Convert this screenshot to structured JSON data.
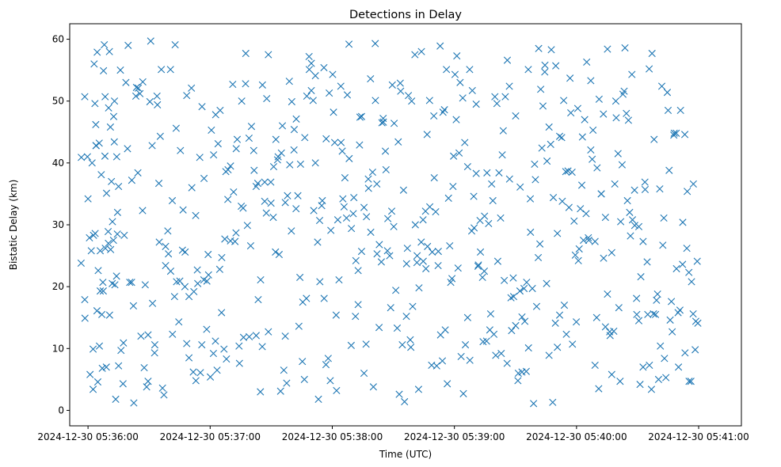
{
  "chart_data": {
    "type": "scatter",
    "title": "Detections in Delay",
    "xlabel": "Time (UTC)",
    "ylabel": "Bistatic Delay (km)",
    "marker": "x",
    "color": "#1f77b4",
    "x_unit": "seconds after 2024-12-30 05:36:00 UTC",
    "xlim": [
      -9,
      321
    ],
    "ylim": [
      -2.5,
      62.5
    ],
    "x_ticks": [
      0,
      60,
      120,
      180,
      240,
      300
    ],
    "x_tick_labels": [
      "2024-12-30 05:36:00",
      "2024-12-30 05:37:00",
      "2024-12-30 05:38:00",
      "2024-12-30 05:39:00",
      "2024-12-30 05:40:00",
      "2024-12-30 05:41:00"
    ],
    "y_ticks": [
      0,
      10,
      20,
      30,
      40,
      50,
      60
    ],
    "y_tick_labels": [
      "0",
      "10",
      "20",
      "30",
      "40",
      "50",
      "60"
    ],
    "grid": false,
    "legend": "none",
    "points_x": [
      -3.4,
      -1.6,
      -1.6,
      0.0,
      1.0,
      2.5,
      3.8,
      3.9,
      4.4,
      5.5,
      6.0,
      7.3,
      8.3,
      9.1,
      10.1,
      11.1,
      12.6,
      13.2,
      14.1,
      14.4,
      15.9,
      17.4,
      18.6,
      19.7,
      21.4,
      22.3,
      23.8,
      24.7,
      26.0,
      26.8,
      28.1,
      29.5,
      30.4,
      31.5,
      32.7,
      33.9,
      34.8,
      35.5,
      36.6,
      38.1,
      39.5,
      40.6,
      41.5,
      42.8,
      43.3,
      45.1,
      46.4,
      47.7,
      48.5,
      49.6,
      50.8,
      52.0,
      52.9,
      53.9,
      54.9,
      55.9,
      57.0,
      58.3,
      59.0,
      60.1,
      61.7,
      62.6,
      63.9,
      64.9,
      65.6,
      67.2,
      68.0,
      68.8,
      70.0,
      71.5,
      72.7,
      73.3,
      74.4,
      75.5,
      76.4,
      77.5,
      79.1,
      79.9,
      81.4,
      82.6,
      83.4,
      84.8,
      85.6,
      86.8,
      87.8,
      88.6,
      89.8,
      91.2,
      92.3,
      93.4,
      94.6,
      95.5,
      96.9,
      97.6,
      98.9,
      99.9,
      101.2,
      102.3,
      103.1,
      104.1,
      105.3,
      106.3,
      107.3,
      108.7,
      109.7,
      110.9,
      111.7,
      113.2,
      113.9,
      115.1,
      116.0,
      117.0,
      118.5,
      119.3,
      120.6,
      121.9,
      122.7,
      124.2,
      124.9,
      125.8,
      127.0,
      128.2,
      129.3,
      130.3,
      131.4,
      132.7,
      133.4,
      134.4,
      135.6,
      136.8,
      137.7,
      138.8,
      140.2,
      141.2,
      142.0,
      143.1,
      144.4,
      145.0,
      146.4,
      147.3,
      148.7,
      149.5,
      150.4,
      151.9,
      152.9,
      153.6,
      155.0,
      156.4,
      156.9,
      158.3,
      159.0,
      160.6,
      161.7,
      162.4,
      163.8,
      164.6,
      166.0,
      166.6,
      167.9,
      169.1,
      170.1,
      171.3,
      172.1,
      173.2,
      174.4,
      175.5,
      176.5,
      177.7,
      178.8,
      179.6,
      180.9,
      181.8,
      182.8,
      184.1,
      185.1,
      186.5,
      187.6,
      188.8,
      189.7,
      190.7,
      191.8,
      192.8,
      194.1,
      194.7,
      196.0,
      197.4,
      198.3,
      199.4,
      200.3,
      201.3,
      202.7,
      203.5,
      204.5,
      205.9,
      207.0,
      207.8,
      208.9,
      210.1,
      211.4,
      212.3,
      213.2,
      214.6,
      215.5,
      216.4,
      217.4,
      218.9,
      219.8,
      221.2,
      222.0,
      223.0,
      224.4,
      225.3,
      226.5,
      227.3,
      228.3,
      229.8,
      230.6,
      231.7,
      233.0,
      234.0,
      235.0,
      236.3,
      237.2,
      238.0,
      239.4,
      240.6,
      241.3,
      242.6,
      243.4,
      244.7,
      245.8,
      247.0,
      247.7,
      249.1,
      249.9,
      250.9,
      252.1,
      253.3,
      254.2,
      255.2,
      256.5,
      257.3,
      258.8,
      259.5,
      260.8,
      261.7,
      262.8,
      263.8,
      265.0,
      266.1,
      267.2,
      268.5,
      269.5,
      270.6,
      271.2,
      272.7,
      273.6,
      275.0,
      275.8,
      277.1,
      278.1,
      279.3,
      280.3,
      281.2,
      282.4,
      283.2,
      284.6,
      285.5,
      286.6,
      287.8,
      289.0,
      289.9,
      290.8,
      292.2,
      293.3,
      294.4,
      295.3,
      296.5,
      297.4,
      298.6,
      299.6,
      -3.3,
      -1.5,
      -0.3,
      0.7,
      1.6,
      2.7,
      3.4,
      4.8,
      5.6,
      6.8,
      7.6,
      8.4,
      9.9,
      10.6,
      11.9,
      12.9,
      13.6,
      15.0,
      16.2,
      17.2,
      17.8,
      19.4,
      20.5,
      21.5,
      22.5,
      23.5,
      24.5,
      25.5,
      26.9,
      27.6,
      28.8,
      29.5,
      30.8,
      31.7,
      32.8,
      34.1,
      35.0,
      36.0,
      37.3,
      38.1,
      39.2,
      40.5,
      41.4,
      42.5,
      43.5,
      44.6,
      45.4,
      46.7,
      47.6,
      48.5,
      49.6,
      51.0,
      51.7,
      53.0,
      53.7,
      55.2,
      56.0,
      56.9,
      58.4,
      59.2,
      60.6,
      61.6,
      62.7,
      63.4,
      64.7,
      65.7,
      66.8,
      67.7,
      68.7,
      70.0,
      71.1,
      72.2,
      72.8,
      74.2,
      75.3,
      76.2,
      77.4,
      78.3,
      79.2,
      80.3,
      81.6,
      82.6,
      83.6,
      84.7,
      85.7,
      86.8,
      87.6,
      88.6,
      89.9,
      91.0,
      92.1,
      93.1,
      93.9,
      95.0,
      96.2,
      96.9,
      98.0,
      99.1,
      100.1,
      101.3,
      102.2,
      103.6,
      104.4,
      105.5,
      106.5,
      107.5,
      108.6,
      109.7,
      110.6,
      111.7,
      112.8,
      113.8,
      114.8,
      115.9,
      116.9,
      118.0,
      119.0,
      120.2,
      121.2,
      122.1,
      123.3,
      124.3,
      125.2,
      126.2,
      127.4,
      128.3,
      129.4,
      130.6,
      131.6,
      132.7,
      133.6,
      134.4,
      135.6,
      136.6,
      137.8,
      138.9,
      139.8,
      141.1,
      141.9,
      143.0,
      144.1,
      145.1,
      146.1,
      147.1,
      148.2,
      149.2,
      150.2,
      151.2,
      152.4,
      153.4,
      154.4,
      155.5,
      156.5,
      157.4,
      158.6,
      159.5,
      160.8,
      161.6,
      162.6,
      163.7,
      164.7,
      165.8,
      166.8,
      167.8,
      168.8,
      169.9,
      170.8,
      172.0,
      173.0,
      174.1,
      175.1,
      176.1,
      177.1,
      178.2,
      179.3,
      180.3,
      181.2,
      182.3,
      183.3,
      184.4,
      185.4,
      186.5,
      187.5,
      188.5,
      189.5,
      190.7,
      191.6,
      192.6,
      193.8,
      194.8,
      195.8,
      196.8,
      197.8,
      198.9,
      199.9,
      200.9,
      201.9,
      203.0,
      204.0,
      205.0,
      206.0,
      207.1,
      208.1,
      209.1,
      210.1,
      211.2,
      212.2,
      213.2,
      214.2,
      215.3,
      216.3,
      217.3,
      218.3,
      219.4,
      220.4,
      221.4,
      222.4,
      223.5,
      224.5,
      225.5,
      226.5,
      227.6,
      228.6,
      229.6,
      230.6,
      231.7,
      232.7,
      233.7,
      234.7,
      235.8,
      236.8,
      237.8,
      238.8,
      239.9,
      240.9,
      241.9,
      242.9,
      244.0,
      245.0,
      246.0,
      247.0,
      248.1,
      249.1,
      250.1,
      251.1,
      252.2,
      253.2,
      254.2,
      255.2,
      256.3,
      257.3,
      258.3,
      259.3,
      260.4,
      261.4,
      262.4,
      263.4,
      264.5,
      265.5,
      266.5,
      267.5,
      268.6,
      269.6,
      270.6,
      271.6,
      272.7,
      273.7,
      274.7,
      275.7,
      276.8,
      277.8,
      278.8,
      279.8,
      280.9,
      281.9,
      282.9,
      283.9,
      285.0,
      286.0,
      287.0,
      288.0,
      289.1,
      290.1,
      291.1,
      292.1,
      293.2,
      294.2,
      295.2,
      296.2,
      297.3,
      298.3,
      299.3,
      2.0,
      3.0,
      4.0,
      5.0,
      6.0,
      7.0,
      8.0,
      9.0,
      10.0,
      11.0,
      12.0,
      13.0,
      14.0,
      15.0,
      2.5,
      4.5,
      6.5,
      8.5,
      10.5,
      12.5,
      14.5,
      3.5,
      7.5,
      11.5
    ],
    "points_y": [
      23.8,
      50.7,
      17.9,
      34.2,
      5.8,
      9.9,
      46.2,
      42.8,
      16.1,
      43.2,
      25.8,
      20.7,
      41.1,
      35.1,
      48.9,
      26.0,
      47.5,
      20.3,
      41.0,
      28.5,
      55.0,
      10.9,
      53.0,
      59.0,
      20.7,
      16.9,
      52.2,
      52.1,
      12.0,
      32.3,
      20.3,
      4.7,
      49.9,
      42.8,
      9.3,
      50.8,
      36.7,
      44.3,
      3.6,
      23.4,
      25.3,
      22.5,
      12.3,
      59.1,
      45.6,
      20.9,
      25.9,
      25.6,
      10.8,
      8.5,
      52.1,
      19.2,
      31.5,
      20.5,
      40.9,
      10.6,
      37.5,
      13.1,
      25.2,
      5.4,
      41.3,
      11.2,
      43.1,
      48.5,
      15.8,
      27.7,
      8.3,
      38.9,
      39.5,
      35.3,
      28.7,
      43.8,
      7.6,
      50.0,
      11.8,
      57.7,
      44.0,
      26.6,
      42.0,
      12.1,
      36.7,
      21.1,
      10.3,
      33.8,
      50.4,
      12.7,
      36.9,
      39.4,
      43.8,
      41.0,
      3.1,
      46.0,
      12.0,
      4.4,
      53.2,
      29.0,
      42.1,
      47.1,
      34.7,
      21.5,
      7.9,
      5.0,
      18.1,
      55.1,
      56.1,
      32.3,
      40.0,
      1.8,
      20.8,
      33.9,
      18.1,
      43.9,
      51.3,
      29.1,
      48.2,
      15.4,
      30.8,
      52.4,
      41.9,
      32.9,
      31.1,
      59.2,
      10.5,
      31.8,
      15.2,
      22.6,
      42.9,
      25.7,
      6.0,
      31.3,
      37.4,
      53.6,
      3.8,
      50.1,
      25.3,
      26.8,
      46.5,
      47.2,
      38.9,
      31.0,
      16.6,
      52.6,
      46.4,
      13.3,
      2.6,
      51.6,
      35.6,
      15.2,
      26.2,
      11.4,
      50.0,
      57.5,
      25.0,
      3.4,
      58.0,
      30.8,
      22.9,
      44.6,
      32.9,
      25.6,
      37.6,
      7.2,
      25.7,
      12.2,
      48.2,
      13.0,
      4.3,
      26.6,
      21.3,
      41.1,
      47.0,
      23.0,
      53.0,
      50.5,
      43.3,
      15.0,
      8.1,
      51.7,
      29.5,
      38.3,
      23.5,
      25.6,
      11.1,
      22.5,
      38.4,
      13.0,
      36.6,
      12.3,
      8.9,
      24.1,
      31.1,
      41.3,
      21.0,
      7.6,
      52.4,
      18.2,
      21.4,
      47.6,
      6.0,
      36.1,
      6.2,
      14.4,
      20.7,
      10.1,
      28.8,
      1.1,
      37.3,
      24.7,
      26.9,
      42.4,
      54.7,
      20.5,
      45.8,
      43.0,
      1.3,
      55.7,
      28.6,
      44.3,
      33.8,
      17.0,
      12.3,
      32.8,
      48.1,
      10.7,
      25.1,
      48.8,
      26.1,
      36.4,
      27.5,
      31.8,
      27.9,
      42.1,
      40.6,
      7.3,
      15.0,
      3.5,
      35.0,
      24.6,
      13.5,
      58.4,
      12.1,
      25.5,
      36.6,
      47.3,
      16.6,
      30.5,
      51.1,
      58.6,
      33.9,
      32.0,
      54.3,
      35.6,
      18.1,
      14.5,
      4.2,
      7.0,
      36.9,
      15.5,
      7.3,
      57.7,
      43.8,
      17.8,
      5.0,
      10.4,
      26.7,
      8.4,
      51.4,
      38.8,
      17.6,
      44.5,
      44.8,
      15.8,
      16.2,
      30.4,
      9.3,
      35.4,
      4.7,
      20.8,
      36.6,
      14.4,
      14.1,
      40.9,
      14.9,
      41.0,
      27.9,
      25.8,
      28.3,
      49.6,
      4.6,
      10.4,
      15.5,
      54.9,
      50.7,
      28.9,
      15.4,
      20.5,
      43.4,
      1.8,
      7.2,
      9.7,
      4.3,
      28.3,
      42.3,
      20.7,
      37.2,
      1.2,
      50.8,
      38.4,
      51.2,
      53.1,
      6.9,
      3.8,
      12.2,
      59.7,
      17.3,
      10.6,
      49.4,
      27.2,
      55.1,
      2.5,
      26.5,
      29.0,
      55.1,
      33.9,
      18.4,
      20.8,
      14.3,
      42.0,
      32.4,
      20.0,
      50.9,
      18.4,
      36.0,
      6.2,
      4.8,
      22.7,
      6.1,
      49.1,
      21.1,
      20.9,
      21.9,
      45.3,
      9.2,
      47.8,
      6.5,
      22.8,
      24.7,
      9.9,
      38.6,
      34.1,
      27.4,
      52.7,
      27.3,
      42.3,
      10.4,
      33.0,
      32.7,
      52.8,
      29.9,
      11.9,
      45.9,
      38.8,
      36.2,
      17.9,
      3.0,
      52.6,
      36.9,
      31.9,
      57.5,
      33.5,
      31.2,
      25.6,
      40.5,
      25.2,
      41.6,
      6.5,
      33.6,
      34.7,
      39.7,
      49.9,
      45.4,
      32.6,
      13.6,
      39.8,
      17.5,
      44.1,
      50.8,
      57.2,
      51.7,
      50.1,
      54.1,
      27.2,
      30.7,
      33.1,
      55.4,
      7.4,
      8.4,
      4.8,
      54.3,
      43.3,
      3.2,
      21.1,
      43.3,
      34.2,
      37.6,
      51.0,
      40.7,
      29.4,
      34.4,
      24.2,
      17.1,
      47.4,
      47.5,
      32.8,
      10.7,
      35.9,
      28.8,
      38.5,
      59.3,
      36.6,
      13.4,
      24.0,
      46.6,
      41.9,
      25.8,
      25.0,
      32.2,
      29.7,
      19.4,
      43.4,
      52.9,
      10.6,
      1.4,
      23.7,
      50.9,
      10.2,
      16.8,
      30.0,
      23.9,
      19.8,
      27.2,
      24.1,
      32.2,
      26.5,
      50.1,
      7.3,
      47.6,
      32.1,
      23.4,
      58.9,
      8.0,
      48.6,
      55.1,
      34.3,
      20.7,
      36.2,
      54.3,
      57.3,
      41.6,
      8.7,
      2.7,
      10.6,
      39.4,
      55.1,
      29.0,
      34.6,
      49.5,
      23.3,
      30.7,
      21.5,
      31.4,
      11.2,
      30.2,
      15.6,
      33.9,
      50.7,
      49.6,
      38.4,
      9.2,
      45.2,
      50.7,
      56.6,
      37.4,
      12.9,
      18.4,
      13.7,
      4.8,
      19.3,
      15.1,
      19.7,
      6.3,
      55.1,
      34.2,
      19.7,
      39.8,
      16.8,
      58.5,
      51.9,
      49.2,
      55.8,
      40.3,
      8.9,
      58.3,
      34.4,
      14.1,
      10.2,
      15.4,
      44.1,
      50.1,
      38.6,
      38.7,
      53.7,
      38.5,
      30.6,
      14.3,
      24.2,
      32.6,
      44.2,
      47.0,
      56.3,
      27.5,
      53.3,
      45.3,
      27.3,
      39.2,
      50.3,
      35.0,
      47.9,
      31.2,
      18.8,
      12.7,
      5.8,
      12.8,
      50.0,
      41.5,
      4.7,
      39.7,
      51.6,
      48.0,
      46.9,
      28.2,
      30.8,
      29.9,
      15.5,
      29.7,
      21.6,
      27.3,
      35.7,
      24.0,
      55.2,
      3.4,
      15.6,
      15.5,
      18.8,
      35.8,
      52.4,
      31.1,
      5.3,
      48.5,
      14.6,
      12.7,
      44.8,
      22.9,
      7.0,
      48.5,
      23.6,
      44.6,
      26.2,
      22.3,
      4.7,
      15.6,
      9.8,
      24.1,
      40.0,
      56.0,
      42.8,
      22.6,
      19.3,
      6.8,
      59.1,
      7.0,
      27.0,
      45.8,
      30.5,
      50.0,
      21.7,
      36.2,
      3.4,
      57.9,
      38.1,
      26.2,
      58.0,
      27.5,
      32.0,
      28.6,
      19.3,
      37.0,
      22.7,
      38.1,
      38.9,
      41.6,
      16.0,
      49.1,
      11.1,
      39.3,
      37.9,
      56.1,
      10.1,
      10.3,
      26.0,
      26.2,
      25.8,
      26.1,
      25.9,
      25.7,
      26.3,
      26.0,
      25.8,
      26.1,
      26.2,
      25.9,
      26.0,
      25.7,
      26.4,
      25.6,
      26.1,
      25.9,
      26.2,
      25.8,
      26.0,
      26.5,
      25.5,
      26.3
    ],
    "_note": "points_x / points_y are the approximate scatter detections read off the plot"
  }
}
